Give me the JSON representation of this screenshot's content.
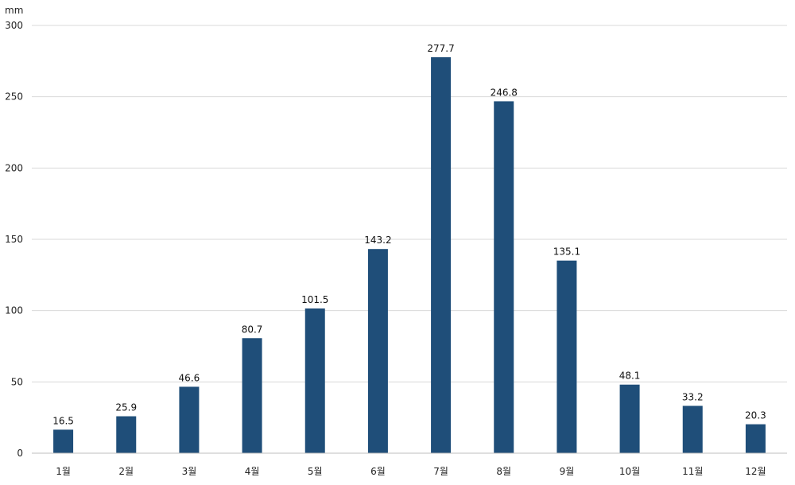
{
  "chart_data": {
    "type": "bar",
    "ylabel": "mm",
    "categories": [
      "1월",
      "2월",
      "3월",
      "4월",
      "5월",
      "6월",
      "7월",
      "8월",
      "9월",
      "10월",
      "11월",
      "12월"
    ],
    "values": [
      16.5,
      25.9,
      46.6,
      80.7,
      101.5,
      143.2,
      277.7,
      246.8,
      135.1,
      48.1,
      33.2,
      20.3
    ],
    "ylim": [
      0,
      300
    ],
    "yticks": [
      0,
      50,
      100,
      150,
      200,
      250,
      300
    ],
    "grid": true,
    "bar_color": "#1f4e79"
  }
}
